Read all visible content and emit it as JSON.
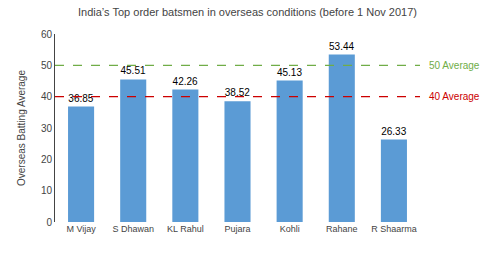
{
  "chart_data": {
    "type": "bar",
    "title": "India’s Top order batsmen in overseas conditions (before 1 Nov 2017)",
    "ylabel": "Overseas Batting Average",
    "categories": [
      "M Vijay",
      "S Dhawan",
      "KL Rahul",
      "Pujara",
      "Kohli",
      "Rahane",
      "R Shaarma"
    ],
    "values": [
      36.85,
      45.51,
      42.26,
      38.52,
      45.13,
      53.44,
      26.33
    ],
    "color": "#5B9BD5",
    "ylim": [
      0,
      60
    ],
    "yticks": [
      0,
      10,
      20,
      30,
      40,
      50,
      60
    ],
    "grid": false,
    "data_labels": true,
    "reference_lines": [
      {
        "value": 50,
        "label": "50 Average",
        "color": "#70AD47",
        "line_style": "dashed"
      },
      {
        "value": 40,
        "label": "40 Average",
        "color": "#CC0000",
        "line_style": "dashed"
      }
    ]
  }
}
